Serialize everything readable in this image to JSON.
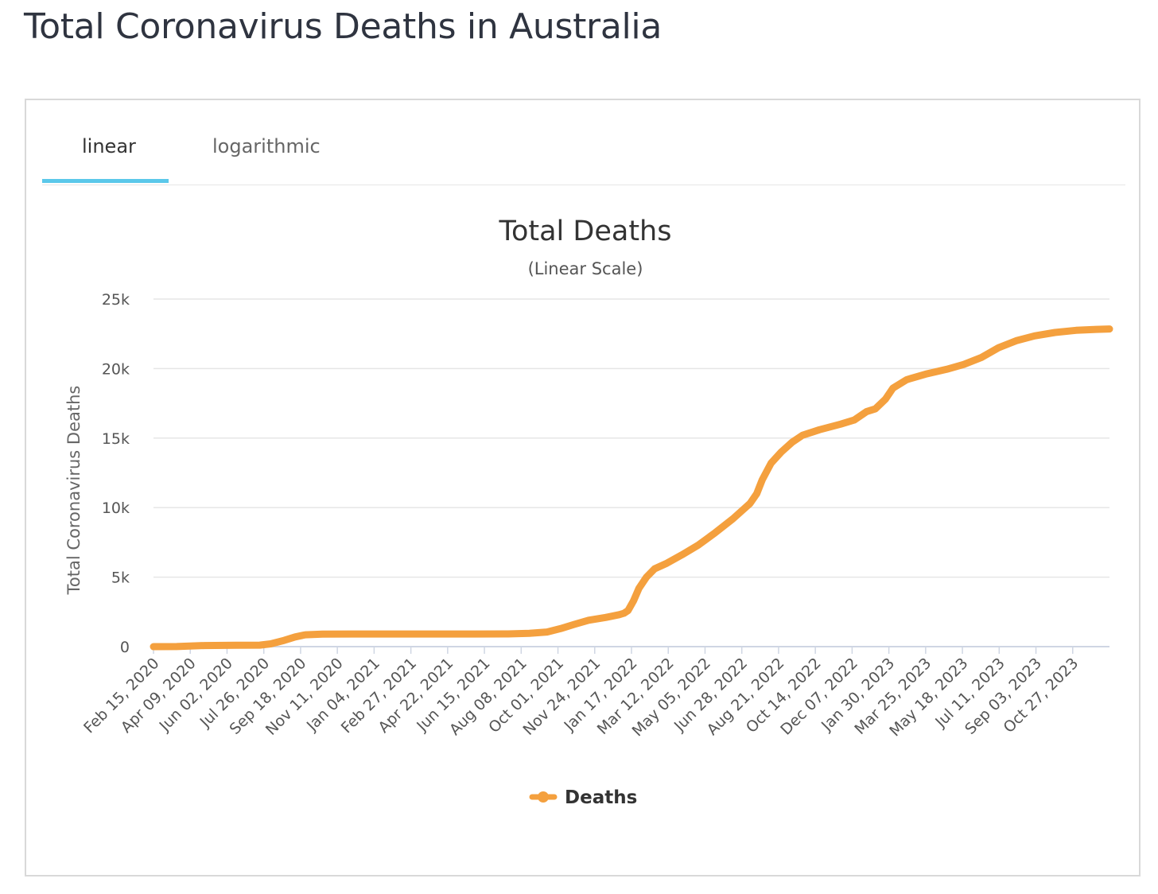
{
  "page": {
    "title": "Total Coronavirus Deaths in Australia"
  },
  "tabs": [
    {
      "label": "linear",
      "active": true
    },
    {
      "label": "logarithmic",
      "active": false
    }
  ],
  "colors": {
    "accent_tab": "#5bc8ea",
    "series": "#f4a03e",
    "grid": "#e6e6e6"
  },
  "chart_data": {
    "type": "line",
    "title": "Total Deaths",
    "subtitle": "(Linear Scale)",
    "ylabel": "Total Coronavirus Deaths",
    "xlabel": "",
    "ylim": [
      0,
      25000
    ],
    "yticks": [
      0,
      5000,
      10000,
      15000,
      20000,
      25000
    ],
    "ytick_labels": [
      "0",
      "5k",
      "10k",
      "15k",
      "20k",
      "25k"
    ],
    "x_start": "2020-02-15",
    "x_end": "2023-12-20",
    "xtick_labels": [
      "Feb 15, 2020",
      "Apr 09, 2020",
      "Jun 02, 2020",
      "Jul 26, 2020",
      "Sep 18, 2020",
      "Nov 11, 2020",
      "Jan 04, 2021",
      "Feb 27, 2021",
      "Apr 22, 2021",
      "Jun 15, 2021",
      "Aug 08, 2021",
      "Oct 01, 2021",
      "Nov 24, 2021",
      "Jan 17, 2022",
      "Mar 12, 2022",
      "May 05, 2022",
      "Jun 28, 2022",
      "Aug 21, 2022",
      "Oct 14, 2022",
      "Dec 07, 2022",
      "Jan 30, 2023",
      "Mar 25, 2023",
      "May 18, 2023",
      "Jul 11, 2023",
      "Sep 03, 2023",
      "Oct 27, 2023"
    ],
    "grid": true,
    "legend_position": "bottom-center",
    "series": [
      {
        "name": "Deaths",
        "color": "#f4a03e",
        "points": [
          [
            "2020-02-15",
            0
          ],
          [
            "2020-03-20",
            5
          ],
          [
            "2020-04-30",
            80
          ],
          [
            "2020-06-15",
            100
          ],
          [
            "2020-07-20",
            110
          ],
          [
            "2020-08-05",
            200
          ],
          [
            "2020-08-25",
            450
          ],
          [
            "2020-09-10",
            700
          ],
          [
            "2020-09-25",
            850
          ],
          [
            "2020-10-20",
            905
          ],
          [
            "2020-12-01",
            908
          ],
          [
            "2021-03-01",
            910
          ],
          [
            "2021-06-01",
            910
          ],
          [
            "2021-07-20",
            915
          ],
          [
            "2021-08-20",
            960
          ],
          [
            "2021-09-15",
            1050
          ],
          [
            "2021-10-05",
            1300
          ],
          [
            "2021-10-25",
            1600
          ],
          [
            "2021-11-15",
            1900
          ],
          [
            "2021-12-10",
            2100
          ],
          [
            "2021-12-30",
            2300
          ],
          [
            "2022-01-06",
            2400
          ],
          [
            "2022-01-12",
            2600
          ],
          [
            "2022-01-20",
            3300
          ],
          [
            "2022-01-28",
            4200
          ],
          [
            "2022-02-08",
            5000
          ],
          [
            "2022-02-20",
            5600
          ],
          [
            "2022-03-10",
            6000
          ],
          [
            "2022-04-01",
            6600
          ],
          [
            "2022-04-25",
            7300
          ],
          [
            "2022-05-20",
            8200
          ],
          [
            "2022-06-15",
            9200
          ],
          [
            "2022-07-10",
            10300
          ],
          [
            "2022-07-20",
            11000
          ],
          [
            "2022-07-28",
            12000
          ],
          [
            "2022-08-10",
            13200
          ],
          [
            "2022-08-25",
            14000
          ],
          [
            "2022-09-10",
            14700
          ],
          [
            "2022-09-25",
            15200
          ],
          [
            "2022-10-20",
            15600
          ],
          [
            "2022-11-20",
            16000
          ],
          [
            "2022-12-10",
            16300
          ],
          [
            "2022-12-28",
            16900
          ],
          [
            "2023-01-10",
            17100
          ],
          [
            "2023-01-25",
            17800
          ],
          [
            "2023-02-05",
            18600
          ],
          [
            "2023-02-25",
            19200
          ],
          [
            "2023-03-25",
            19600
          ],
          [
            "2023-04-25",
            19950
          ],
          [
            "2023-05-20",
            20300
          ],
          [
            "2023-06-15",
            20800
          ],
          [
            "2023-07-10",
            21500
          ],
          [
            "2023-08-05",
            22000
          ],
          [
            "2023-09-01",
            22350
          ],
          [
            "2023-10-01",
            22600
          ],
          [
            "2023-11-01",
            22750
          ],
          [
            "2023-12-01",
            22820
          ],
          [
            "2023-12-20",
            22850
          ]
        ]
      }
    ]
  }
}
